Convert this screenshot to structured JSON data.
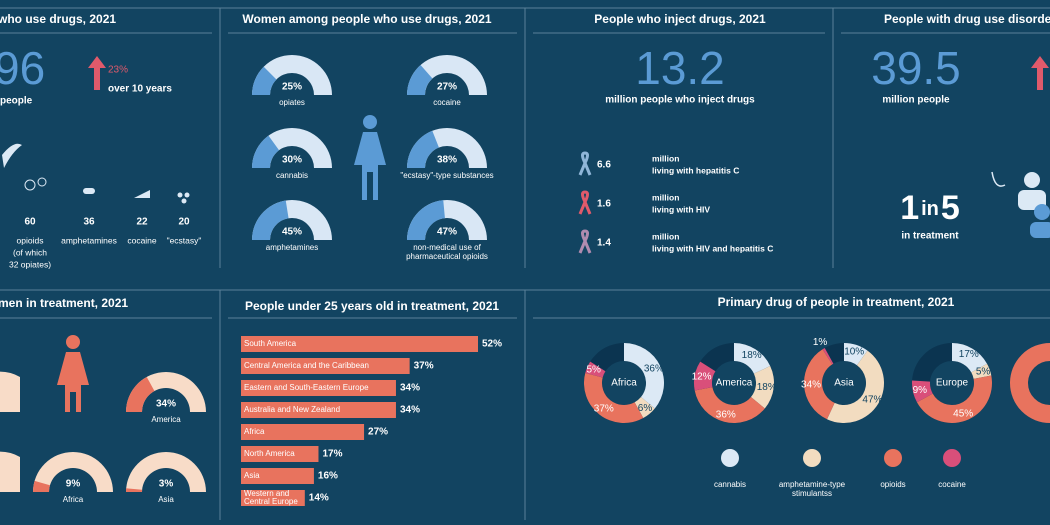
{
  "panels": {
    "users": {
      "title": "who use drugs, 2021",
      "total": "96",
      "total_label": "people",
      "change": "23%",
      "change_label": "over 10 years",
      "drugs": [
        {
          "value": "60",
          "label": [
            "opioids",
            "(of which",
            "32 opiates)"
          ]
        },
        {
          "value": "36",
          "label": [
            "amphetamines"
          ]
        },
        {
          "value": "22",
          "label": [
            "cocaine"
          ]
        },
        {
          "value": "20",
          "label": [
            "\"ecstasy\""
          ]
        }
      ]
    },
    "inject": {
      "title": "People who inject drugs, 2021",
      "total": "13.2",
      "total_label": "million people who inject drugs",
      "rows": [
        {
          "value": "6.6",
          "unit": "million",
          "label": "living with hepatitis C"
        },
        {
          "value": "1.6",
          "unit": "million",
          "label": "living with HIV"
        },
        {
          "value": "1.4",
          "unit": "million",
          "label": "living with HIV and hepatitis C"
        }
      ]
    },
    "disorders": {
      "title": "People with drug use disorders",
      "total": "39.5",
      "total_label": "million people",
      "ratio": [
        "1",
        "in",
        "5"
      ],
      "ratio_label": "in treatment"
    }
  },
  "chart_data": [
    {
      "type": "gauge",
      "title": "Women among people who use drugs, 2021",
      "categories": [
        "opiates",
        "cocaine",
        "cannabis",
        "\"ecstasy\"-type substances",
        "amphetamines",
        "non-medical use of pharmaceutical opioids"
      ],
      "values": [
        25,
        27,
        30,
        38,
        45,
        47
      ],
      "value_labels": [
        "25%",
        "27%",
        "30%",
        "38%",
        "45%",
        "47%"
      ],
      "color": "#5b9bd5",
      "track_color": "#d9e7f5"
    },
    {
      "type": "gauge",
      "title": "men in treatment, 2021",
      "categories": [
        "America",
        "Africa",
        "Asia"
      ],
      "values": [
        34,
        9,
        3
      ],
      "value_labels": [
        "34%",
        "9%",
        "3%"
      ],
      "color": "#e8735e",
      "track_color": "#f8dcc8"
    },
    {
      "type": "bar",
      "title": "People under 25 years old in treatment, 2021",
      "categories": [
        "South America",
        "Central America and the Caribbean",
        "Eastern and South-Eastern Europe",
        "Australia and New Zealand",
        "Africa",
        "North America",
        "Asia",
        "Western and Central Europe"
      ],
      "values": [
        52,
        37,
        34,
        34,
        27,
        17,
        16,
        14
      ],
      "value_labels": [
        "52%",
        "37%",
        "34%",
        "34%",
        "27%",
        "17%",
        "16%",
        "14%"
      ],
      "color": "#e8735e"
    },
    {
      "type": "donut",
      "title": "Primary drug of people in treatment, 2021",
      "categories": [
        "cannabis",
        "amphetamine-type stimulantss",
        "opioids",
        "cocaine"
      ],
      "colors": [
        "#dce9f5",
        "#f2dcc0",
        "#e8735e",
        "#d94f7a"
      ],
      "series": [
        {
          "name": "Africa",
          "values": [
            36,
            6,
            37,
            5
          ],
          "value_labels": [
            "36%",
            "6%",
            "37%",
            "5%"
          ]
        },
        {
          "name": "America",
          "values": [
            18,
            18,
            36,
            12
          ],
          "value_labels": [
            "18%",
            "18%",
            "36%",
            "12%"
          ]
        },
        {
          "name": "Asia",
          "values": [
            10,
            47,
            34,
            1
          ],
          "value_labels": [
            "10%",
            "47%",
            "34%",
            "1%"
          ]
        },
        {
          "name": "Europe",
          "values": [
            17,
            5,
            45,
            9
          ],
          "value_labels": [
            "17%",
            "5%",
            "45%",
            "9%"
          ]
        }
      ]
    }
  ]
}
